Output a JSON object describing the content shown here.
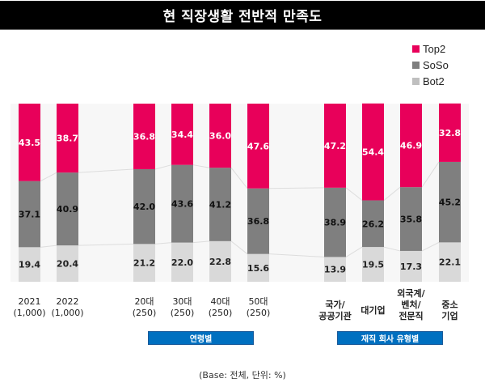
{
  "title": "현 직장생활 전반적 만족도",
  "legend": [
    {
      "name": "Top2",
      "color": "#E8005A"
    },
    {
      "name": "SoSo",
      "color": "#7F7F7F"
    },
    {
      "name": "Bot2",
      "color": "#BFBFBF"
    }
  ],
  "groups": [
    {
      "label": "연령별"
    },
    {
      "label": "재직 회사 유형별"
    }
  ],
  "base_note": "(Base: 전체, 단위: %)",
  "chart_data": {
    "type": "bar",
    "stacked": true,
    "percent_stacked": true,
    "title": "현 직장생활 전반적 만족도",
    "xlabel": "",
    "ylabel": "",
    "ylim": [
      0,
      100
    ],
    "legend_position": "top-right",
    "categories": [
      "2021\n(1,000)",
      "2022\n(1,000)",
      "20대\n(250)",
      "30대\n(250)",
      "40대\n(250)",
      "50대\n(250)",
      "국가/\n공공기관",
      "대기업",
      "외국계/\n벤처/\n전문직",
      "중소\n기업"
    ],
    "category_groups": [
      {
        "label": "연령별",
        "categories": [
          "20대\n(250)",
          "30대\n(250)",
          "40대\n(250)",
          "50대\n(250)"
        ]
      },
      {
        "label": "재직 회사 유형별",
        "categories": [
          "국가/\n공공기관",
          "대기업",
          "외국계/\n벤처/\n전문직",
          "중소\n기업"
        ]
      }
    ],
    "series": [
      {
        "name": "Bot2",
        "color": "#D9D9D9",
        "label_color": "#222222",
        "values": [
          19.4,
          20.4,
          21.2,
          22.0,
          22.8,
          15.6,
          13.9,
          19.5,
          17.3,
          22.1
        ]
      },
      {
        "name": "SoSo",
        "color": "#7F7F7F",
        "label_color": "#111111",
        "values": [
          37.1,
          40.9,
          42.0,
          43.6,
          41.2,
          36.8,
          38.9,
          26.2,
          35.8,
          45.2
        ]
      },
      {
        "name": "Top2",
        "color": "#E8005A",
        "label_color": "#FFFFFF",
        "values": [
          43.5,
          38.7,
          36.8,
          34.4,
          36.0,
          47.6,
          47.2,
          54.4,
          46.9,
          32.8
        ]
      }
    ]
  }
}
